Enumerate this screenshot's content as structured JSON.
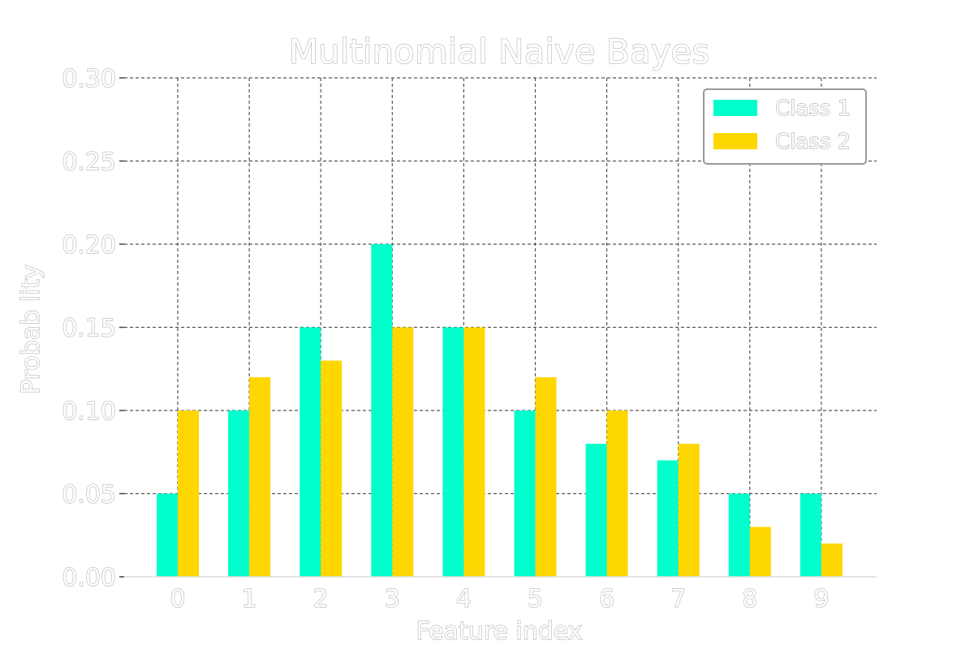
{
  "chart_data": {
    "type": "bar",
    "title": "Multinomial Naive Bayes",
    "xlabel": "Feature index",
    "ylabel": "Probab lity",
    "categories": [
      "0",
      "1",
      "2",
      "3",
      "4",
      "5",
      "6",
      "7",
      "8",
      "9"
    ],
    "series": [
      {
        "name": "Class 1",
        "color": "#00FFCC",
        "values": [
          0.05,
          0.1,
          0.15,
          0.2,
          0.15,
          0.1,
          0.08,
          0.07,
          0.05,
          0.05
        ]
      },
      {
        "name": "Class 2",
        "color": "#FFD700",
        "values": [
          0.1,
          0.12,
          0.13,
          0.15,
          0.15,
          0.12,
          0.1,
          0.08,
          0.03,
          0.02
        ]
      }
    ],
    "ylim": [
      0,
      0.3
    ],
    "yticks": [
      "0.00",
      "0.05",
      "0.10",
      "0.15",
      "0.20",
      "0.25",
      "0.30"
    ],
    "grid": true,
    "legend_position": "top-right"
  }
}
